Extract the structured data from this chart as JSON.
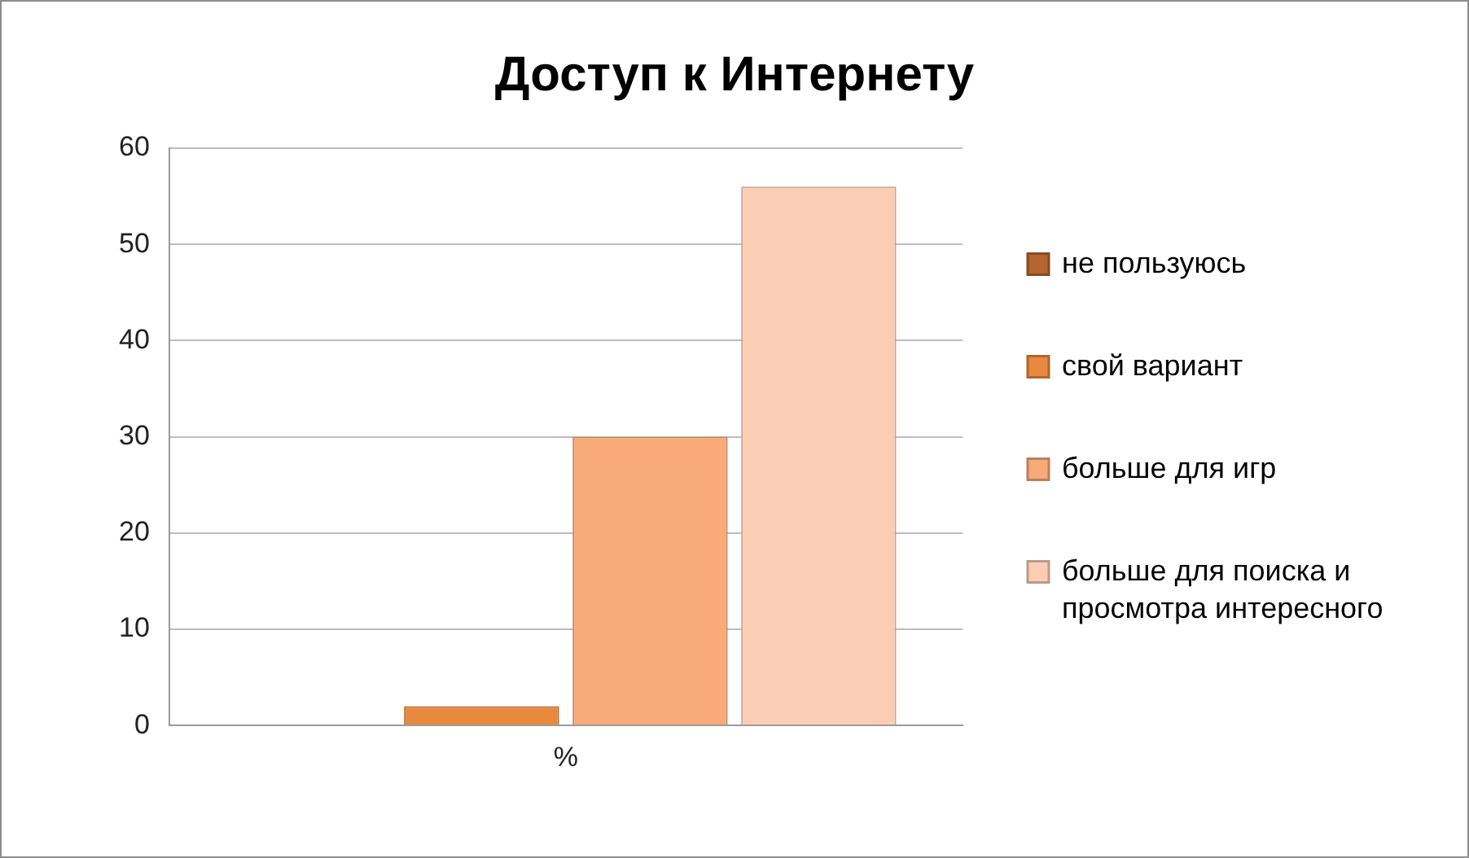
{
  "chart_data": {
    "type": "bar",
    "title": "Доступ к Интернету",
    "categories": [
      "%"
    ],
    "series": [
      {
        "name": "не пользуюсь",
        "color": "#b5652f",
        "values": [
          0
        ]
      },
      {
        "name": "свой вариант",
        "color": "#e8893e",
        "values": [
          2
        ]
      },
      {
        "name": "больше для игр",
        "color": "#f8aa78",
        "values": [
          30
        ]
      },
      {
        "name": "больше для поиска и просмотра интересного",
        "color": "#fbcdb5",
        "values": [
          56
        ]
      }
    ],
    "ylim": [
      0,
      60
    ],
    "yticks": [
      0,
      10,
      20,
      30,
      40,
      50,
      60
    ],
    "grid": "y",
    "legend": "right"
  }
}
